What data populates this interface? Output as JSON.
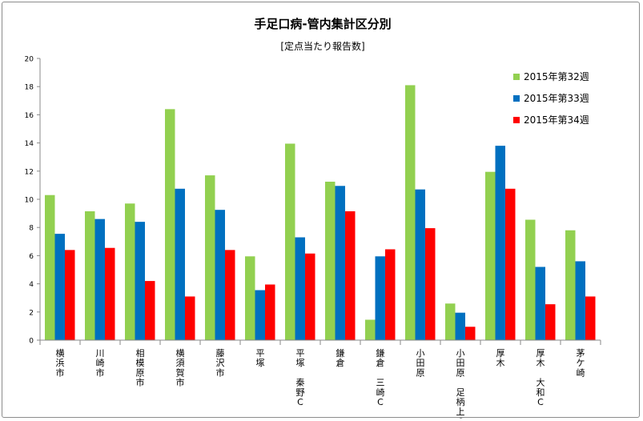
{
  "chart_data": {
    "type": "bar",
    "title": "手足口病-管内集計区分別",
    "subtitle": "[定点当たり報告数]",
    "xlabel": "",
    "ylabel": "",
    "ylim": [
      0,
      20
    ],
    "yticks": [
      0,
      2,
      4,
      6,
      8,
      10,
      12,
      14,
      16,
      18,
      20
    ],
    "grid": false,
    "legend_position": "top-right",
    "categories": [
      "横浜市",
      "川崎市",
      "相模原市",
      "横須賀市",
      "藤沢市",
      "平塚",
      "平塚 秦野C",
      "鎌倉",
      "鎌倉 三崎C",
      "小田原",
      "小田原 足柄上C",
      "厚木",
      "厚木 大和C",
      "茅ケ崎"
    ],
    "series": [
      {
        "name": "2015年第32週",
        "color": "#92d050",
        "values": [
          10.3,
          9.15,
          9.7,
          16.4,
          11.7,
          5.95,
          13.95,
          11.25,
          1.45,
          18.1,
          2.6,
          11.95,
          8.55,
          7.8
        ]
      },
      {
        "name": "2015年第33週",
        "color": "#0070c0",
        "values": [
          7.55,
          8.6,
          8.4,
          10.75,
          9.25,
          3.55,
          7.3,
          10.95,
          5.95,
          10.7,
          1.95,
          13.8,
          5.2,
          5.6
        ]
      },
      {
        "name": "2015年第34週",
        "color": "#ff0000",
        "values": [
          6.4,
          6.55,
          4.2,
          3.1,
          6.4,
          3.95,
          6.15,
          9.15,
          6.45,
          7.95,
          0.95,
          10.75,
          2.55,
          3.1
        ]
      }
    ]
  }
}
